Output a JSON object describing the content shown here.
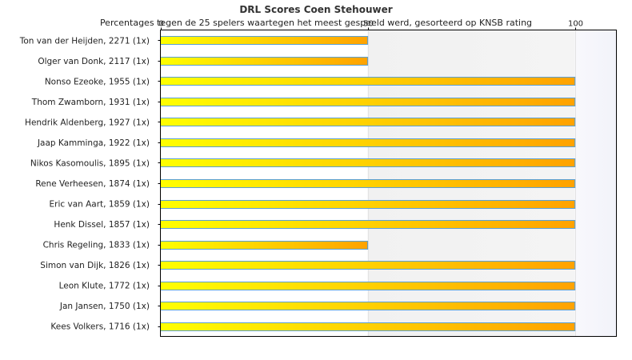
{
  "chart_data": {
    "type": "bar",
    "orientation": "horizontal",
    "title": "DRL Scores Coen Stehouwer",
    "subtitle": "Percentages tegen de 25 spelers waartegen het meest gespeeld werd, gesorteerd op KNSB rating",
    "xlim": [
      0,
      110
    ],
    "xticks": [
      0,
      50,
      100
    ],
    "categories": [
      "Ton van der Heijden, 2271 (1x)",
      "Olger van Donk, 2117 (1x)",
      "Nonso Ezeoke, 1955 (1x)",
      "Thom Zwamborn, 1931 (1x)",
      "Hendrik Aldenberg, 1927 (1x)",
      "Jaap Kamminga, 1922 (1x)",
      "Nikos Kasomoulis, 1895 (1x)",
      "Rene Verheesen, 1874 (1x)",
      "Eric van Aart, 1859 (1x)",
      "Henk Dissel, 1857 (1x)",
      "Chris Regeling, 1833 (1x)",
      "Simon van Dijk, 1826 (1x)",
      "Leon Klute, 1772 (1x)",
      "Jan Jansen, 1750 (1x)",
      "Kees Volkers, 1716 (1x)"
    ],
    "values": [
      50,
      50,
      100,
      100,
      100,
      100,
      100,
      100,
      100,
      100,
      50,
      100,
      100,
      100,
      100
    ],
    "colors": {
      "bar_start": "#ffff00",
      "bar_end": "#ffa200",
      "bar_border": "#5a9fd4"
    },
    "grid": true,
    "legend": false
  }
}
